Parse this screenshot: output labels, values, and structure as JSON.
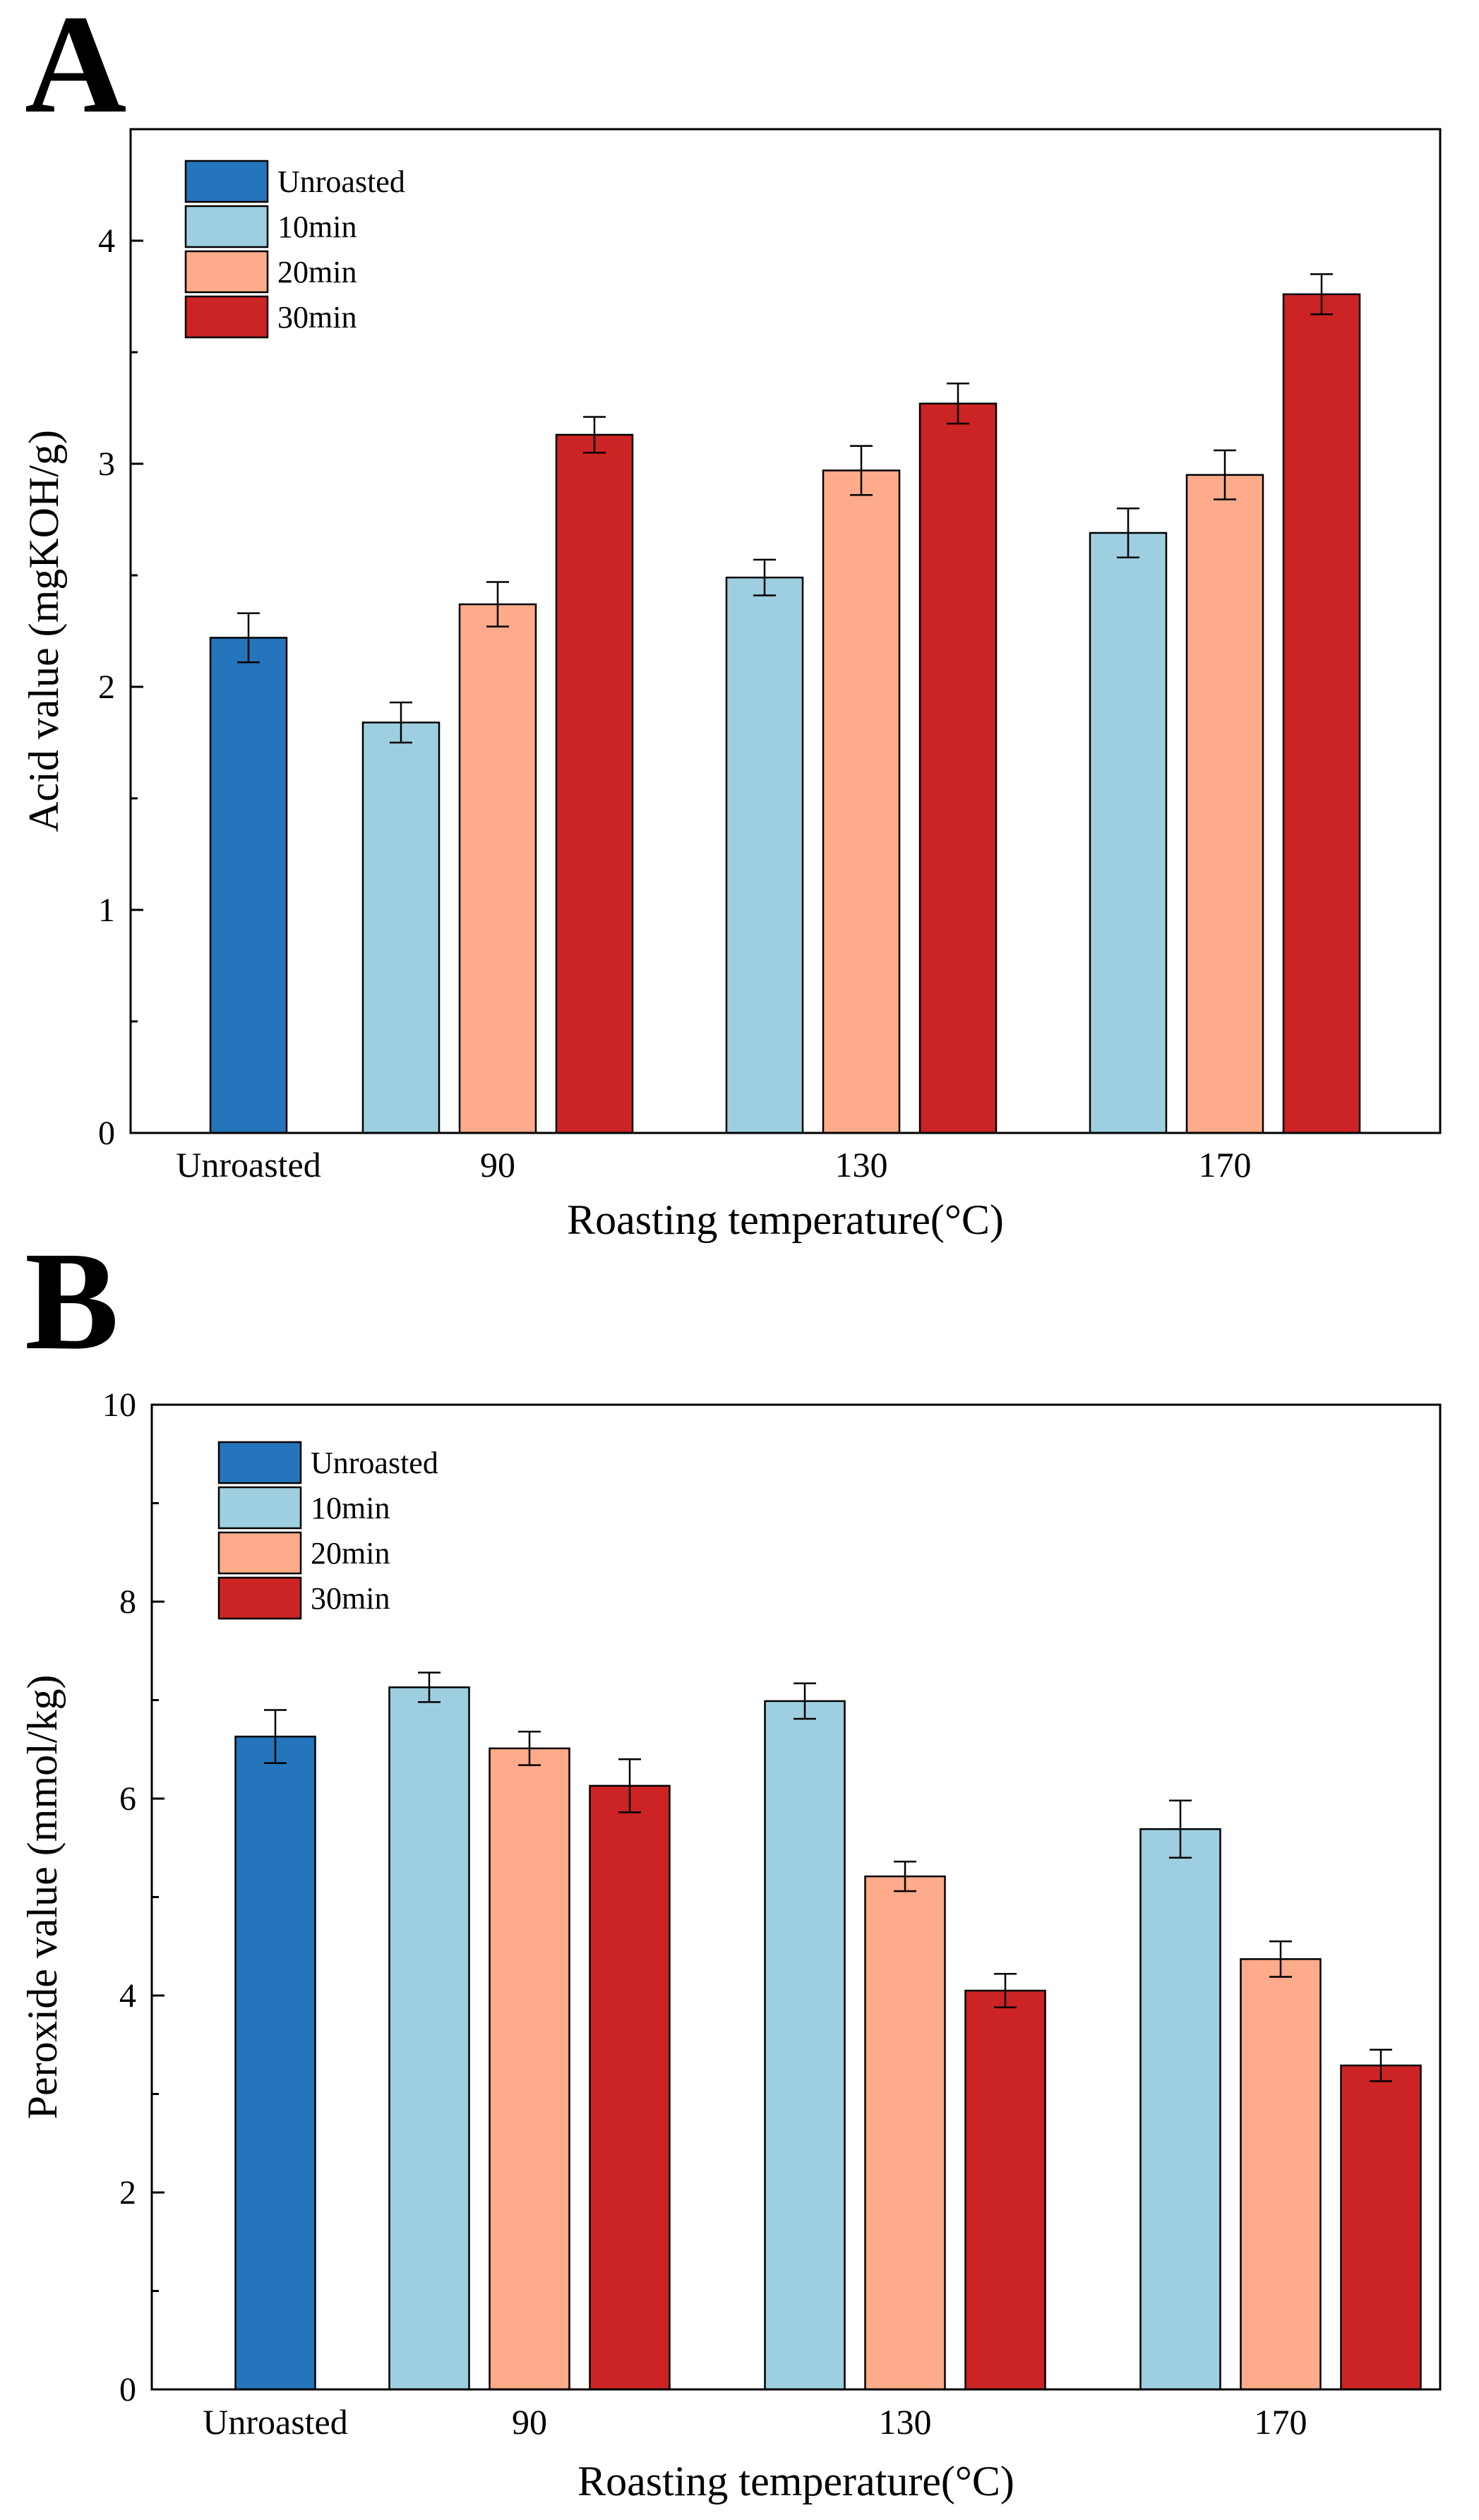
{
  "chart_data": [
    {
      "type": "bar",
      "panel_label": "A",
      "categories": [
        "Unroasted",
        "90",
        "130",
        "170"
      ],
      "xlabel": "Roasting temperature(°C)",
      "ylabel": "Acid value (mgKOH/g)",
      "ylim": [
        0,
        4.5
      ],
      "yticks": [
        0,
        1,
        2,
        3,
        4
      ],
      "grid": false,
      "legend_position": "top-left",
      "series": [
        {
          "name": "Unroasted",
          "color": "#2475BB",
          "values": [
            2.22,
            null,
            null,
            null
          ],
          "errors": [
            0.11,
            null,
            null,
            null
          ]
        },
        {
          "name": "10min",
          "color": "#9ECFE0",
          "values": [
            null,
            1.84,
            2.49,
            2.69
          ],
          "errors": [
            null,
            0.09,
            0.08,
            0.11
          ]
        },
        {
          "name": "20min",
          "color": "#FDAB8A",
          "values": [
            null,
            2.37,
            2.97,
            2.95
          ],
          "errors": [
            null,
            0.1,
            0.11,
            0.11
          ]
        },
        {
          "name": "30min",
          "color": "#CC2424",
          "values": [
            null,
            3.13,
            3.27,
            3.76
          ],
          "errors": [
            null,
            0.08,
            0.09,
            0.09
          ]
        }
      ]
    },
    {
      "type": "bar",
      "panel_label": "B",
      "categories": [
        "Unroasted",
        "90",
        "130",
        "170"
      ],
      "xlabel": "Roasting temperature(°C)",
      "ylabel": "Peroxide value (mmol/kg)",
      "ylim": [
        0,
        10
      ],
      "yticks": [
        0,
        2,
        4,
        6,
        8,
        10
      ],
      "grid": false,
      "legend_position": "top-left",
      "series": [
        {
          "name": "Unroasted",
          "color": "#2475BB",
          "values": [
            6.63,
            null,
            null,
            null
          ],
          "errors": [
            0.27,
            null,
            null,
            null
          ]
        },
        {
          "name": "10min",
          "color": "#9ECFE0",
          "values": [
            null,
            7.13,
            6.99,
            5.69
          ],
          "errors": [
            null,
            0.15,
            0.18,
            0.29
          ]
        },
        {
          "name": "20min",
          "color": "#FDAB8A",
          "values": [
            null,
            6.51,
            5.21,
            4.37
          ],
          "errors": [
            null,
            0.17,
            0.15,
            0.18
          ]
        },
        {
          "name": "30min",
          "color": "#CC2424",
          "values": [
            null,
            6.13,
            4.05,
            3.29
          ],
          "errors": [
            null,
            0.27,
            0.17,
            0.16
          ]
        }
      ]
    }
  ]
}
